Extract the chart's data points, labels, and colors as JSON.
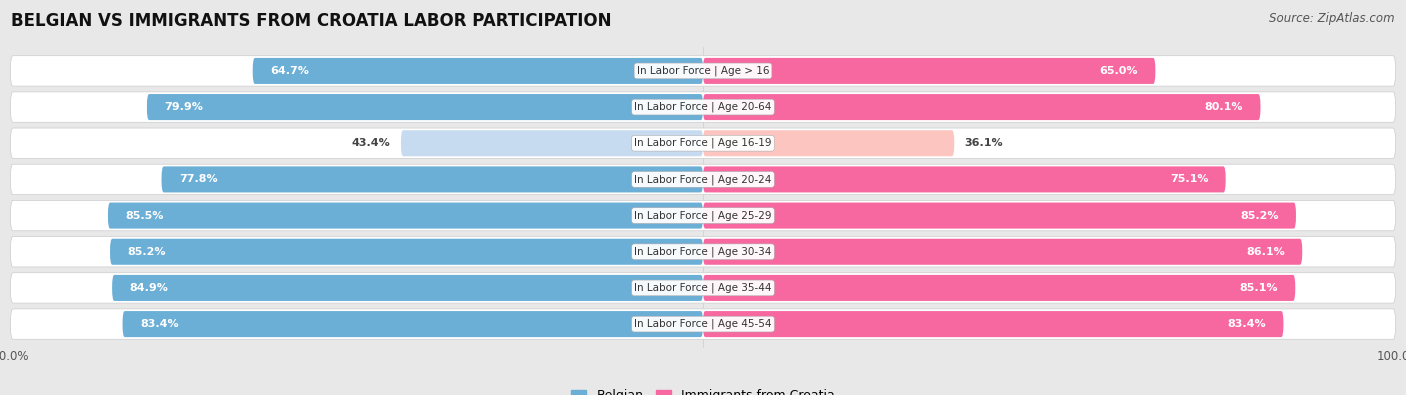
{
  "title": "BELGIAN VS IMMIGRANTS FROM CROATIA LABOR PARTICIPATION",
  "source": "Source: ZipAtlas.com",
  "categories": [
    "In Labor Force | Age > 16",
    "In Labor Force | Age 20-64",
    "In Labor Force | Age 16-19",
    "In Labor Force | Age 20-24",
    "In Labor Force | Age 25-29",
    "In Labor Force | Age 30-34",
    "In Labor Force | Age 35-44",
    "In Labor Force | Age 45-54"
  ],
  "belgian_values": [
    64.7,
    79.9,
    43.4,
    77.8,
    85.5,
    85.2,
    84.9,
    83.4
  ],
  "croatia_values": [
    65.0,
    80.1,
    36.1,
    75.1,
    85.2,
    86.1,
    85.1,
    83.4
  ],
  "belgian_color": "#6baed6",
  "belgian_light_color": "#c6dbef",
  "croatia_color": "#f768a1",
  "croatia_light_color": "#fcc5c0",
  "background_color": "#e8e8e8",
  "row_bg_color": "#f0f0f0",
  "max_value": 100.0,
  "legend_belgian": "Belgian",
  "legend_croatia": "Immigrants from Croatia",
  "title_fontsize": 12,
  "source_fontsize": 8.5,
  "label_fontsize": 8,
  "tick_fontsize": 8.5
}
